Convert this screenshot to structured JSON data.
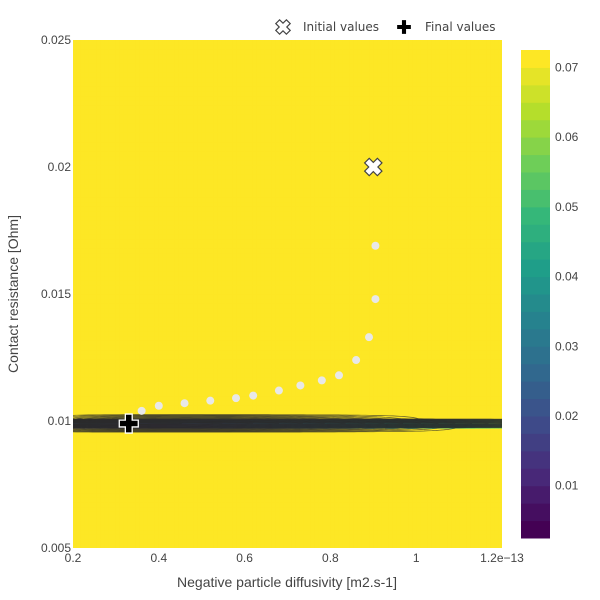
{
  "chart_data": {
    "type": "contour",
    "xlabel": "Negative particle diffusivity [m2.s-1]",
    "ylabel": "Contact resistance [Ohm]",
    "xlim": [
      0.2,
      1.2
    ],
    "ylim": [
      0.005,
      0.025
    ],
    "x_ticks": [
      {
        "value": 0.2,
        "label": "0.2"
      },
      {
        "value": 0.4,
        "label": "0.4"
      },
      {
        "value": 0.6,
        "label": "0.6"
      },
      {
        "value": 0.8,
        "label": "0.8"
      },
      {
        "value": 1.0,
        "label": "1"
      },
      {
        "value": 1.2,
        "label": "1.2e−13"
      }
    ],
    "y_ticks": [
      {
        "value": 0.005,
        "label": "0.005"
      },
      {
        "value": 0.01,
        "label": "0.01"
      },
      {
        "value": 0.015,
        "label": "0.015"
      },
      {
        "value": 0.02,
        "label": "0.02"
      },
      {
        "value": 0.025,
        "label": "0.025"
      }
    ],
    "colorbar": {
      "range": [
        0.0025,
        0.0725
      ],
      "ticks": [
        {
          "value": 0.01,
          "label": "0.01"
        },
        {
          "value": 0.02,
          "label": "0.02"
        },
        {
          "value": 0.03,
          "label": "0.03"
        },
        {
          "value": 0.04,
          "label": "0.04"
        },
        {
          "value": 0.05,
          "label": "0.05"
        },
        {
          "value": 0.06,
          "label": "0.06"
        },
        {
          "value": 0.07,
          "label": "0.07"
        }
      ],
      "levels": [
        0.0025,
        0.005,
        0.0075,
        0.01,
        0.0125,
        0.015,
        0.0175,
        0.02,
        0.0225,
        0.025,
        0.0275,
        0.03,
        0.0325,
        0.035,
        0.0375,
        0.04,
        0.0425,
        0.045,
        0.0475,
        0.05,
        0.0525,
        0.055,
        0.0575,
        0.06,
        0.0625,
        0.065,
        0.0675,
        0.07,
        0.0725
      ],
      "colorscale": "viridis"
    },
    "surface": {
      "minimum": {
        "x": 0.33,
        "y": 0.0099,
        "value": 0.003
      }
    },
    "legend": {
      "placement": "top-right",
      "orientation": "horizontal",
      "entries": [
        {
          "name": "Initial values",
          "symbol": "x-thin-open",
          "color": "#ffffff"
        },
        {
          "name": "Final values",
          "symbol": "cross",
          "color": "#000000"
        }
      ]
    },
    "initial_point": {
      "x": 0.9,
      "y": 0.02
    },
    "final_point": {
      "x": 0.33,
      "y": 0.0099
    },
    "trajectory": {
      "color": "#e8e8e8",
      "x": [
        0.905,
        0.905,
        0.89,
        0.86,
        0.82,
        0.78,
        0.73,
        0.68,
        0.62,
        0.58,
        0.52,
        0.46,
        0.4,
        0.36,
        0.33
      ],
      "y": [
        0.0169,
        0.0148,
        0.0133,
        0.0124,
        0.0118,
        0.0116,
        0.0114,
        0.0112,
        0.011,
        0.0109,
        0.0108,
        0.0107,
        0.0106,
        0.0104,
        0.0101
      ]
    }
  }
}
